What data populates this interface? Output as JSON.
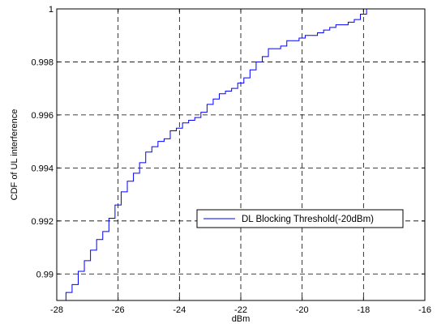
{
  "chart_data": {
    "type": "line",
    "title": "",
    "xlabel": "dBm",
    "ylabel": "CDF of UL interference",
    "xlim": [
      -28,
      -16
    ],
    "ylim": [
      0.989,
      1.0
    ],
    "xticks": [
      -28,
      -26,
      -24,
      -22,
      -20,
      -18,
      -16
    ],
    "yticks": [
      0.99,
      0.992,
      0.994,
      0.996,
      0.998,
      1.0
    ],
    "xtick_labels": [
      "-28",
      "-26",
      "-24",
      "-22",
      "-20",
      "-18",
      "-16"
    ],
    "ytick_labels": [
      "0.99",
      "0.992",
      "0.994",
      "0.996",
      "0.998",
      "1"
    ],
    "grid": true,
    "legend_position": "center-right",
    "series": [
      {
        "name": "DL Blocking Threshold(-20dBm)",
        "color": "#0000ff",
        "step": true,
        "x": [
          -27.9,
          -27.7,
          -27.5,
          -27.3,
          -27.1,
          -26.9,
          -26.7,
          -26.5,
          -26.3,
          -26.1,
          -25.9,
          -25.7,
          -25.5,
          -25.3,
          -25.1,
          -24.9,
          -24.7,
          -24.5,
          -24.3,
          -24.1,
          -23.9,
          -23.7,
          -23.5,
          -23.3,
          -23.1,
          -22.9,
          -22.7,
          -22.5,
          -22.3,
          -22.1,
          -21.9,
          -21.7,
          -21.5,
          -21.3,
          -21.1,
          -20.9,
          -20.7,
          -20.5,
          -20.3,
          -20.1,
          -19.9,
          -19.7,
          -19.5,
          -19.3,
          -19.1,
          -18.9,
          -18.7,
          -18.5,
          -18.3,
          -18.1,
          -17.9,
          -17.8
        ],
        "y": [
          0.989,
          0.9893,
          0.9896,
          0.9901,
          0.9905,
          0.9909,
          0.9913,
          0.9916,
          0.9921,
          0.9926,
          0.9931,
          0.9935,
          0.9938,
          0.9942,
          0.9946,
          0.9948,
          0.995,
          0.9951,
          0.9954,
          0.9955,
          0.9957,
          0.9958,
          0.9959,
          0.9961,
          0.9964,
          0.9966,
          0.9968,
          0.9969,
          0.997,
          0.9972,
          0.9974,
          0.9977,
          0.998,
          0.9982,
          0.9985,
          0.9985,
          0.9986,
          0.9988,
          0.9988,
          0.9989,
          0.999,
          0.999,
          0.9991,
          0.9992,
          0.9993,
          0.9994,
          0.9994,
          0.9995,
          0.9996,
          0.9998,
          1.0,
          1.0
        ]
      }
    ]
  }
}
